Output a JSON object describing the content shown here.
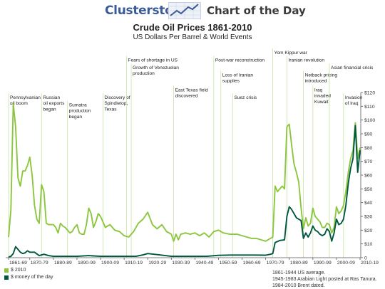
{
  "header": {
    "brand": "Clusterstock",
    "section": "Chart of the Day"
  },
  "colors": {
    "brand": "#3b5b98",
    "series_2010": "#8cc63f",
    "series_money": "#00573f",
    "event_line": "#c6e3a4"
  },
  "chart_data": {
    "type": "line",
    "title": "Crude Oil Prices 1861-2010",
    "subtitle": "US Dollars Per Barrel & World Events",
    "xlabel": "",
    "ylabel": "",
    "xlim": [
      1861,
      2010
    ],
    "ylim": [
      0,
      120
    ],
    "yticks": [
      0,
      10,
      20,
      30,
      40,
      50,
      60,
      70,
      80,
      90,
      100,
      110,
      120
    ],
    "ytick_labels": [
      "0",
      "$10",
      "$20",
      "$30",
      "$40",
      "$50",
      "$60",
      "$70",
      "$80",
      "$90",
      "$100",
      "$110",
      "$120"
    ],
    "xticks": [
      1861,
      1870,
      1880,
      1890,
      1900,
      1910,
      1920,
      1930,
      1940,
      1950,
      1960,
      1970,
      1980,
      1990,
      2000,
      2010
    ],
    "xtick_labels": [
      "1861-69",
      "1870-79",
      "1880-89",
      "1890-99",
      "1900-09",
      "1910-19",
      "1920-29",
      "1930-39",
      "1940-49",
      "1950-59",
      "1960-69",
      "1970-79",
      "1980-89",
      "1990-99",
      "2000-09",
      "2010-19"
    ],
    "grid": false,
    "legend_placement": "bottom-left",
    "series": [
      {
        "name": "$ 2010",
        "color": "#8cc63f",
        "x": [
          1861,
          1862,
          1863,
          1864,
          1865,
          1866,
          1867,
          1868,
          1869,
          1870,
          1871,
          1872,
          1873,
          1874,
          1875,
          1876,
          1877,
          1878,
          1879,
          1880,
          1881,
          1882,
          1883,
          1884,
          1885,
          1886,
          1887,
          1888,
          1889,
          1890,
          1891,
          1892,
          1893,
          1894,
          1895,
          1896,
          1897,
          1898,
          1899,
          1900,
          1902,
          1904,
          1906,
          1908,
          1910,
          1912,
          1914,
          1916,
          1918,
          1920,
          1922,
          1924,
          1926,
          1928,
          1930,
          1931,
          1932,
          1933,
          1934,
          1936,
          1938,
          1940,
          1942,
          1944,
          1946,
          1948,
          1950,
          1952,
          1955,
          1958,
          1960,
          1962,
          1964,
          1966,
          1968,
          1970,
          1972,
          1973,
          1974,
          1975,
          1976,
          1977,
          1978,
          1979,
          1980,
          1981,
          1982,
          1983,
          1984,
          1985,
          1986,
          1987,
          1988,
          1989,
          1990,
          1991,
          1992,
          1993,
          1994,
          1995,
          1996,
          1997,
          1998,
          1999,
          2000,
          2001,
          2002,
          2003,
          2004,
          2005,
          2006,
          2007,
          2008,
          2009,
          2010
        ],
        "y": [
          15,
          35,
          112,
          95,
          58,
          52,
          63,
          63,
          67,
          73,
          60,
          38,
          28,
          25,
          53,
          48,
          25,
          24,
          24,
          24,
          22,
          18,
          25,
          23,
          22,
          20,
          18,
          19,
          22,
          24,
          18,
          17,
          17,
          24,
          36,
          32,
          22,
          26,
          32,
          30,
          22,
          24,
          20,
          19,
          16,
          15,
          19,
          25,
          28,
          33,
          24,
          21,
          24,
          19,
          17,
          12,
          17,
          13,
          17,
          18,
          17,
          18,
          16,
          18,
          15,
          19,
          20,
          18,
          17,
          17,
          16,
          15,
          14,
          14,
          13,
          12,
          14,
          15,
          52,
          48,
          50,
          52,
          50,
          95,
          97,
          82,
          68,
          62,
          55,
          36,
          21,
          29,
          23,
          25,
          36,
          30,
          28,
          26,
          22,
          22,
          25,
          24,
          18,
          22,
          37,
          32,
          34,
          38,
          48,
          62,
          72,
          78,
          98,
          72,
          80
        ]
      },
      {
        "name": "$ money of the day",
        "color": "#00573f",
        "x": [
          1861,
          1862,
          1863,
          1864,
          1865,
          1866,
          1867,
          1868,
          1869,
          1870,
          1872,
          1874,
          1876,
          1878,
          1880,
          1885,
          1890,
          1895,
          1900,
          1905,
          1910,
          1915,
          1918,
          1920,
          1925,
          1930,
          1935,
          1940,
          1945,
          1950,
          1955,
          1960,
          1965,
          1970,
          1972,
          1973,
          1974,
          1976,
          1978,
          1979,
          1980,
          1981,
          1982,
          1983,
          1984,
          1985,
          1986,
          1987,
          1988,
          1989,
          1990,
          1991,
          1992,
          1993,
          1994,
          1995,
          1996,
          1997,
          1998,
          1999,
          2000,
          2001,
          2002,
          2003,
          2004,
          2005,
          2006,
          2007,
          2008,
          2009,
          2010
        ],
        "y": [
          0.5,
          1,
          3,
          8,
          6,
          4,
          3,
          3.5,
          5,
          4,
          4,
          1.5,
          2.5,
          1.5,
          1,
          1,
          1,
          1.5,
          1,
          1,
          1,
          1,
          2,
          3,
          2,
          1,
          1,
          1,
          1,
          1.7,
          1.9,
          1.9,
          1.9,
          1.8,
          2.5,
          3,
          11,
          12.5,
          13,
          30,
          37,
          35,
          32,
          29,
          28,
          27,
          14,
          18,
          15,
          18,
          23,
          20,
          19,
          17,
          16,
          17,
          21,
          19,
          12,
          18,
          28,
          24,
          25,
          28,
          38,
          54,
          65,
          72,
          96,
          62,
          78
        ]
      }
    ],
    "annotations": [
      {
        "year": 1861,
        "text": "Pennsylvanian\noil boom",
        "row": 6
      },
      {
        "year": 1875,
        "text": "Russian\noil exports\nbegan",
        "row": 6
      },
      {
        "year": 1886,
        "text": "Sumatra\nproduction\nbegan",
        "row": 7
      },
      {
        "year": 1901,
        "text": "Discovery of\nSpindletop,\nTexas",
        "row": 6
      },
      {
        "year": 1911,
        "text": "Fears of shortage in US",
        "row": 1
      },
      {
        "year": 1913,
        "text": "Growth of Venezuelan\nproduction",
        "row": 2
      },
      {
        "year": 1931,
        "text": "East Texas field\ndiscovered",
        "row": 5
      },
      {
        "year": 1948,
        "text": "Post-war reconstruction",
        "row": 1
      },
      {
        "year": 1951,
        "text": "Loss of Iranian\nsupplies",
        "row": 3
      },
      {
        "year": 1956,
        "text": "Suez crisis",
        "row": 6
      },
      {
        "year": 1973,
        "text": "Yom Kippur war",
        "row": 0
      },
      {
        "year": 1979,
        "text": "Iranian revolution",
        "row": 1
      },
      {
        "year": 1986,
        "text": "Netback pricing\nintroduced",
        "row": 3
      },
      {
        "year": 1990,
        "text": "Iraq\ninvaded\nKuwait",
        "row": 5
      },
      {
        "year": 1997,
        "text": "Asian financial crisis",
        "row": 2
      },
      {
        "year": 2003,
        "text": "Invasion\nof Iraq",
        "row": 6
      }
    ]
  },
  "legend": {
    "items": [
      {
        "label": "$ 2010",
        "color": "#8cc63f"
      },
      {
        "label": "$ money of the day",
        "color": "#00573f"
      }
    ]
  },
  "source_notes": [
    "1861-1944 US average.",
    "1945-1983 Arabian Light posted at Ras Tanura.",
    "1984-2010 Brent dated."
  ]
}
